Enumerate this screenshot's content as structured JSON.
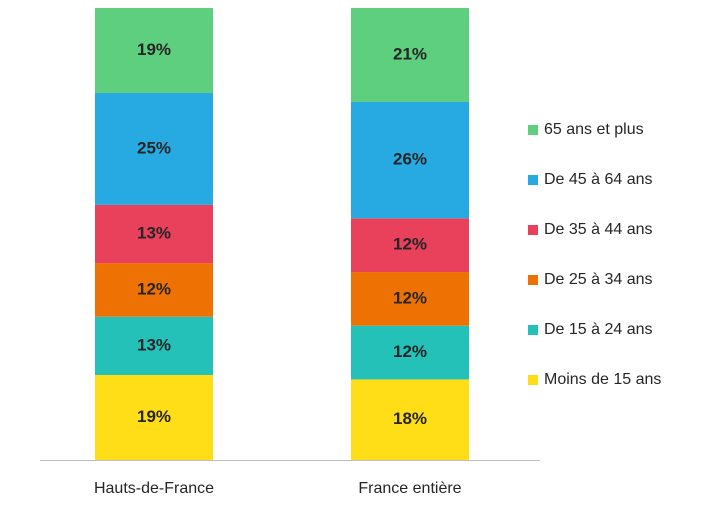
{
  "chart_data": {
    "type": "stacked_bar",
    "categories": [
      "Hauts-de-France",
      "France entière"
    ],
    "series": [
      {
        "name": "Moins de 15 ans",
        "color": "#FFDE17",
        "values": [
          19,
          18
        ],
        "value_labels": [
          "19%",
          "18%"
        ]
      },
      {
        "name": "De 15 à 24 ans",
        "color": "#24C1B9",
        "values": [
          13,
          12
        ],
        "value_labels": [
          "13%",
          "12%"
        ]
      },
      {
        "name": "De 25 à 34 ans",
        "color": "#EE7203",
        "values": [
          12,
          12
        ],
        "value_labels": [
          "12%",
          "12%"
        ]
      },
      {
        "name": "De 35 à 44 ans",
        "color": "#E9405B",
        "values": [
          13,
          12
        ],
        "value_labels": [
          "13%",
          "12%"
        ]
      },
      {
        "name": "De 45 à 64 ans",
        "color": "#27AAE1",
        "values": [
          25,
          26
        ],
        "value_labels": [
          "25%",
          "26%"
        ]
      },
      {
        "name": "65 ans et plus",
        "color": "#5ECF7F",
        "values": [
          19,
          21
        ],
        "value_labels": [
          "19%",
          "21%"
        ]
      }
    ],
    "legend": "right"
  }
}
